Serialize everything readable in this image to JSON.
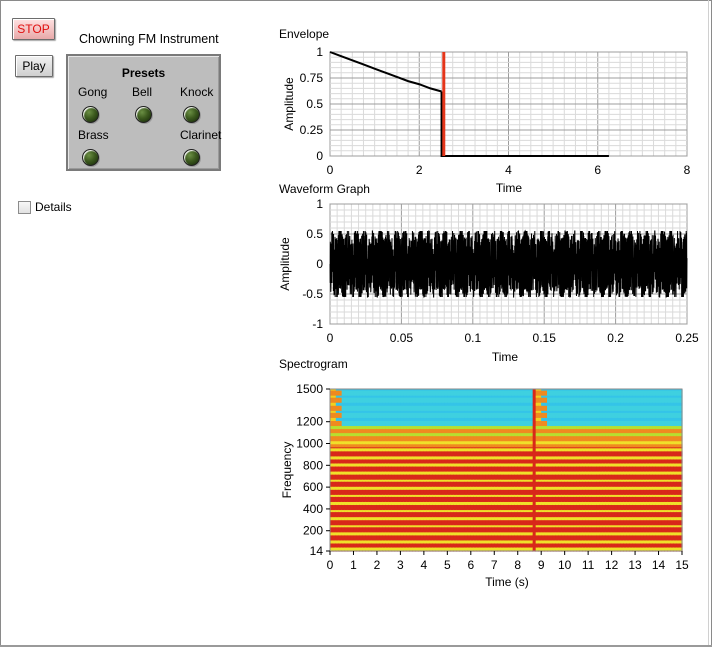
{
  "buttons": {
    "stop_label": "STOP",
    "play_label": "Play"
  },
  "instrument_title": "Chowning FM Instrument",
  "presets": {
    "title": "Presets",
    "items": [
      {
        "label": "Gong",
        "state": "off"
      },
      {
        "label": "Bell",
        "state": "off"
      },
      {
        "label": "Knock",
        "state": "off"
      },
      {
        "label": "Brass",
        "state": "off"
      },
      {
        "label": "Clarinet",
        "state": "off"
      }
    ]
  },
  "details_checkbox": {
    "label": "Details",
    "checked": false
  },
  "colors": {
    "cursor": "#e4351a",
    "stop_text": "#e01010",
    "led_off": "#3c5a1e"
  },
  "chart_data": [
    {
      "id": "envelope",
      "type": "line",
      "title": "Envelope",
      "xlabel": "Time",
      "ylabel": "Amplitude",
      "xlim": [
        0,
        8
      ],
      "ylim": [
        0,
        1
      ],
      "xticks": [
        "0",
        "2",
        "4",
        "6",
        "8"
      ],
      "yticks": [
        "0",
        "0.25",
        "0.5",
        "0.75",
        "1"
      ],
      "series": [
        {
          "x": [
            0,
            0.25,
            0.5,
            0.75,
            1.0,
            1.25,
            1.5,
            1.75,
            2.0,
            2.25,
            2.5
          ],
          "y": [
            1.0,
            0.96,
            0.92,
            0.88,
            0.84,
            0.8,
            0.76,
            0.72,
            0.69,
            0.65,
            0.62
          ]
        },
        {
          "x": [
            2.5,
            2.5,
            6.25
          ],
          "y": [
            0.62,
            0.0,
            0.0
          ]
        }
      ],
      "cursor_x": 2.55,
      "grid": true
    },
    {
      "id": "waveform",
      "type": "line",
      "title": "Waveform Graph",
      "xlabel": "Time",
      "ylabel": "Amplitude",
      "xlim": [
        0,
        0.25
      ],
      "ylim": [
        -1,
        1
      ],
      "xticks": [
        "0",
        "0.05",
        "0.1",
        "0.15",
        "0.2",
        "0.25"
      ],
      "yticks": [
        "-1",
        "-0.5",
        "0",
        "0.5",
        "1"
      ],
      "signal": {
        "amplitude_range": [
          -0.55,
          0.55
        ],
        "description_values": "dense oscillation"
      },
      "grid": true
    },
    {
      "id": "spectrogram",
      "type": "heatmap",
      "title": "Spectrogram",
      "xlabel": "Time (s)",
      "ylabel": "Frequency",
      "xlim": [
        0,
        15
      ],
      "ylim": [
        14,
        1500
      ],
      "xticks": [
        "0",
        "1",
        "2",
        "3",
        "4",
        "5",
        "6",
        "7",
        "8",
        "9",
        "10",
        "11",
        "12",
        "13",
        "14",
        "15"
      ],
      "yticks": [
        "14",
        "200",
        "400",
        "600",
        "800",
        "1000",
        "1200",
        "1500"
      ],
      "harmonic_spacing_hz": 70,
      "onset_times_s": [
        0,
        8.7
      ]
    }
  ]
}
